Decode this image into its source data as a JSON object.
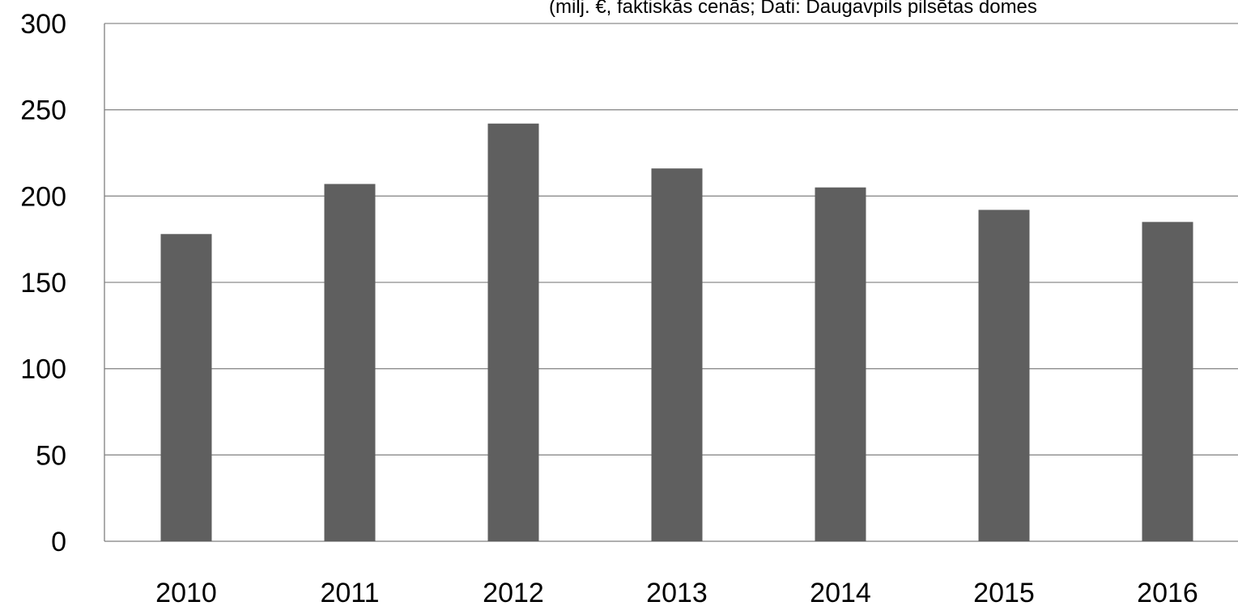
{
  "chart_data": {
    "type": "bar",
    "title": "",
    "subtitle": "(milj. €, faktiskās cenās; Dati: Daugavpils pilsētas domes",
    "xlabel": "",
    "ylabel": "",
    "categories": [
      "2010",
      "2011",
      "2012",
      "2013",
      "2014",
      "2015",
      "2016"
    ],
    "values": [
      178,
      207,
      242,
      216,
      205,
      192,
      185
    ],
    "ylim": [
      0,
      300
    ],
    "yticks": [
      "0",
      "50",
      "100",
      "150",
      "200",
      "250",
      "300"
    ],
    "grid": true,
    "legend": "none",
    "colors": {
      "bar": "#5f5f5f",
      "grid": "#8c8c8c",
      "axis": "#7f7f7f"
    }
  }
}
